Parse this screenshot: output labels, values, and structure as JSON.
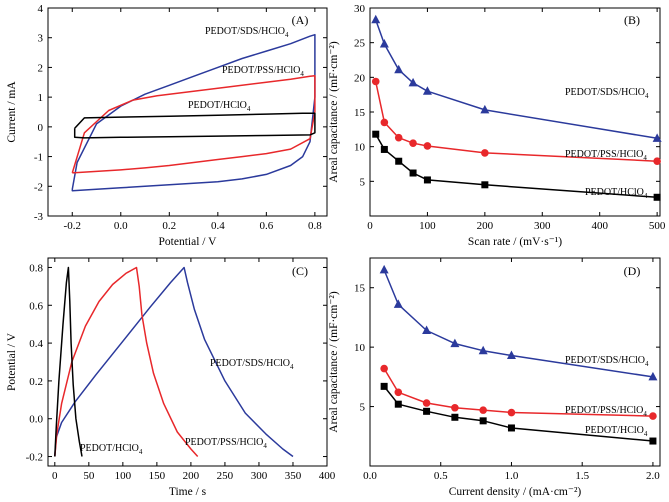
{
  "chart_data": [
    {
      "id": "A",
      "type": "line",
      "panel_label": "(A)",
      "xlabel": "Potential / V",
      "ylabel": "Current / mA",
      "xlim": [
        -0.3,
        0.85
      ],
      "ylim": [
        -3,
        4
      ],
      "xticks": [
        -0.2,
        0.0,
        0.2,
        0.4,
        0.6,
        0.8
      ],
      "xtick_labels": [
        "-0.2",
        "0.0",
        "0.2",
        "0.4",
        "0.6",
        "0.8"
      ],
      "yticks": [
        -3,
        -2,
        -1,
        0,
        1,
        2,
        3,
        4
      ],
      "ytick_labels": [
        "-3",
        "-2",
        "-1",
        "0",
        "1",
        "2",
        "3",
        "4"
      ],
      "series": [
        {
          "name": "PEDOT/SDS/HClO4",
          "color": "#2b3a9c",
          "x": [
            -0.2,
            -0.18,
            -0.1,
            0.0,
            0.1,
            0.2,
            0.3,
            0.4,
            0.5,
            0.6,
            0.7,
            0.78,
            0.8,
            0.8,
            0.78,
            0.75,
            0.7,
            0.6,
            0.5,
            0.4,
            0.3,
            0.2,
            0.1,
            0.0,
            -0.1,
            -0.2,
            -0.2
          ],
          "y": [
            -2.1,
            -1.2,
            0.1,
            0.7,
            1.1,
            1.4,
            1.7,
            2.0,
            2.3,
            2.55,
            2.8,
            3.05,
            3.1,
            1.0,
            -0.5,
            -1.0,
            -1.3,
            -1.6,
            -1.75,
            -1.85,
            -1.9,
            -1.95,
            -2.0,
            -2.05,
            -2.1,
            -2.15,
            -2.1
          ]
        },
        {
          "name": "PEDOT/PSS/HClO4",
          "color": "#e8282b",
          "x": [
            -0.2,
            -0.15,
            -0.05,
            0.05,
            0.15,
            0.3,
            0.45,
            0.6,
            0.7,
            0.78,
            0.8,
            0.8,
            0.78,
            0.7,
            0.6,
            0.5,
            0.4,
            0.3,
            0.2,
            0.1,
            0.0,
            -0.1,
            -0.2,
            -0.2
          ],
          "y": [
            -1.55,
            -0.2,
            0.55,
            0.9,
            1.05,
            1.2,
            1.35,
            1.5,
            1.6,
            1.7,
            1.72,
            0.5,
            -0.4,
            -0.75,
            -0.9,
            -1.0,
            -1.1,
            -1.2,
            -1.3,
            -1.38,
            -1.45,
            -1.5,
            -1.55,
            -1.55
          ]
        },
        {
          "name": "PEDOT/HClO4",
          "color": "#000000",
          "x": [
            -0.19,
            -0.15,
            0.0,
            0.2,
            0.4,
            0.6,
            0.75,
            0.8,
            0.8,
            0.78,
            0.6,
            0.4,
            0.2,
            0.0,
            -0.15,
            -0.19,
            -0.19
          ],
          "y": [
            -0.05,
            0.3,
            0.33,
            0.36,
            0.39,
            0.43,
            0.46,
            0.46,
            -0.2,
            -0.27,
            -0.29,
            -0.31,
            -0.33,
            -0.35,
            -0.37,
            -0.35,
            -0.05
          ]
        }
      ],
      "labels": [
        {
          "text": "PEDOT/SDS/HClO",
          "sub": "4",
          "series": 0
        },
        {
          "text": "PEDOT/PSS/HClO",
          "sub": "4",
          "series": 1
        },
        {
          "text": "PEDOT/HClO",
          "sub": "4",
          "series": 2
        }
      ]
    },
    {
      "id": "B",
      "type": "line",
      "panel_label": "(B)",
      "xlabel": "Scan rate / (mV·s⁻¹)",
      "ylabel": "Areal capacitance / (mF·cm⁻²)",
      "xlim": [
        0,
        505
      ],
      "ylim": [
        0,
        30
      ],
      "xticks": [
        0,
        100,
        200,
        300,
        400,
        500
      ],
      "xtick_labels": [
        "0",
        "100",
        "200",
        "300",
        "400",
        "500"
      ],
      "yticks": [
        5,
        10,
        15,
        20,
        25,
        30
      ],
      "ytick_labels": [
        "5",
        "10",
        "15",
        "20",
        "25",
        "30"
      ],
      "series": [
        {
          "name": "PEDOT/SDS/HClO4",
          "color": "#2b3a9c",
          "marker": "triangle",
          "x": [
            10,
            25,
            50,
            75,
            100,
            200,
            500
          ],
          "y": [
            28.3,
            24.8,
            21.1,
            19.2,
            18.0,
            15.3,
            11.2
          ]
        },
        {
          "name": "PEDOT/PSS/HClO4",
          "color": "#e8282b",
          "marker": "circle",
          "x": [
            10,
            25,
            50,
            75,
            100,
            200,
            500
          ],
          "y": [
            19.4,
            13.5,
            11.3,
            10.5,
            10.1,
            9.1,
            7.9
          ]
        },
        {
          "name": "PEDOT/HClO4",
          "color": "#000000",
          "marker": "square",
          "x": [
            10,
            25,
            50,
            75,
            100,
            200,
            500
          ],
          "y": [
            11.8,
            9.6,
            7.9,
            6.2,
            5.2,
            4.5,
            2.7
          ]
        }
      ],
      "labels": [
        {
          "text": "PEDOT/SDS/HClO",
          "sub": "4",
          "series": 0
        },
        {
          "text": "PEDOT/PSS/HClO",
          "sub": "4",
          "series": 1
        },
        {
          "text": "PEDOT/HClO",
          "sub": "4",
          "series": 2
        }
      ]
    },
    {
      "id": "C",
      "type": "line",
      "panel_label": "(C)",
      "xlabel": "Time / s",
      "ylabel": "Potential / V",
      "xlim": [
        -10,
        400
      ],
      "ylim": [
        -0.25,
        0.85
      ],
      "xticks": [
        0,
        50,
        100,
        150,
        200,
        250,
        300,
        350,
        400
      ],
      "xtick_labels": [
        "0",
        "50",
        "100",
        "150",
        "200",
        "250",
        "300",
        "350",
        "400"
      ],
      "yticks": [
        -0.2,
        0.0,
        0.2,
        0.4,
        0.6,
        0.8
      ],
      "ytick_labels": [
        "-0.2",
        "0.0",
        "0.2",
        "0.4",
        "0.6",
        "0.8"
      ],
      "series": [
        {
          "name": "PEDOT/SDS/HClO4",
          "color": "#2b3a9c",
          "x": [
            0,
            2,
            10,
            30,
            60,
            100,
            140,
            170,
            190,
            195,
            205,
            220,
            250,
            280,
            310,
            335,
            350
          ],
          "y": [
            -0.2,
            -0.1,
            -0.02,
            0.09,
            0.23,
            0.41,
            0.59,
            0.72,
            0.8,
            0.72,
            0.58,
            0.42,
            0.2,
            0.03,
            -0.08,
            -0.16,
            -0.2
          ]
        },
        {
          "name": "PEDOT/PSS/HClO4",
          "color": "#e8282b",
          "x": [
            0,
            3,
            10,
            25,
            45,
            65,
            85,
            105,
            120,
            124,
            128,
            135,
            145,
            160,
            180,
            200,
            210
          ],
          "y": [
            -0.2,
            -0.08,
            0.08,
            0.3,
            0.49,
            0.62,
            0.71,
            0.77,
            0.8,
            0.7,
            0.55,
            0.4,
            0.24,
            0.08,
            -0.07,
            -0.16,
            -0.2
          ]
        },
        {
          "name": "PEDOT/HClO4",
          "color": "#000000",
          "x": [
            0,
            2,
            6,
            12,
            17,
            20,
            22,
            24,
            27,
            31,
            36,
            40
          ],
          "y": [
            -0.2,
            -0.05,
            0.2,
            0.5,
            0.72,
            0.8,
            0.62,
            0.4,
            0.18,
            0.0,
            -0.12,
            -0.2
          ]
        }
      ],
      "labels": [
        {
          "text": "PEDOT/SDS/HClO",
          "sub": "4",
          "series": 0
        },
        {
          "text": "PEDOT/PSS/HClO",
          "sub": "4",
          "series": 1
        },
        {
          "text": "PEDOT/HClO",
          "sub": "4",
          "series": 2
        }
      ]
    },
    {
      "id": "D",
      "type": "line",
      "panel_label": "(D)",
      "xlabel": "Current density / (mA·cm⁻²)",
      "ylabel": "Areal capacitance / (mF·cm⁻²)",
      "xlim": [
        0,
        2.05
      ],
      "ylim": [
        0,
        17.5
      ],
      "xticks": [
        0.0,
        0.5,
        1.0,
        1.5,
        2.0
      ],
      "xtick_labels": [
        "0.0",
        "0.5",
        "1.0",
        "1.5",
        "2.0"
      ],
      "yticks": [
        5,
        10,
        15
      ],
      "ytick_labels": [
        "5",
        "10",
        "15"
      ],
      "series": [
        {
          "name": "PEDOT/SDS/HClO4",
          "color": "#2b3a9c",
          "marker": "triangle",
          "x": [
            0.1,
            0.2,
            0.4,
            0.6,
            0.8,
            1.0,
            2.0
          ],
          "y": [
            16.5,
            13.6,
            11.4,
            10.3,
            9.7,
            9.3,
            7.5
          ]
        },
        {
          "name": "PEDOT/PSS/HClO4",
          "color": "#e8282b",
          "marker": "circle",
          "x": [
            0.1,
            0.2,
            0.4,
            0.6,
            0.8,
            1.0,
            2.0
          ],
          "y": [
            8.2,
            6.2,
            5.3,
            4.9,
            4.7,
            4.5,
            4.2
          ]
        },
        {
          "name": "PEDOT/HClO4",
          "color": "#000000",
          "marker": "square",
          "x": [
            0.1,
            0.2,
            0.4,
            0.6,
            0.8,
            1.0,
            2.0
          ],
          "y": [
            6.7,
            5.2,
            4.6,
            4.1,
            3.8,
            3.2,
            2.1
          ]
        }
      ],
      "labels": [
        {
          "text": "PEDOT/SDS/HClO",
          "sub": "4",
          "series": 0
        },
        {
          "text": "PEDOT/PSS/HClO",
          "sub": "4",
          "series": 1
        },
        {
          "text": "PEDOT/HClO",
          "sub": "4",
          "series": 2
        }
      ]
    }
  ]
}
